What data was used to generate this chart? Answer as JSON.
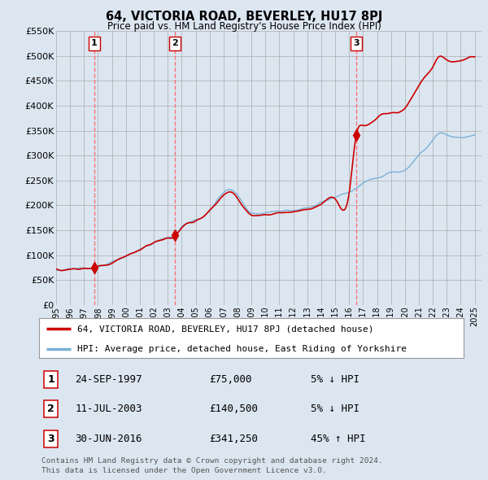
{
  "title": "64, VICTORIA ROAD, BEVERLEY, HU17 8PJ",
  "subtitle": "Price paid vs. HM Land Registry's House Price Index (HPI)",
  "transactions": [
    {
      "num": 1,
      "date": "24-SEP-1997",
      "year": 1997.73,
      "price": 75000,
      "pct": "5%",
      "dir": "↓"
    },
    {
      "num": 2,
      "date": "11-JUL-2003",
      "year": 2003.53,
      "price": 140500,
      "pct": "5%",
      "dir": "↓"
    },
    {
      "num": 3,
      "date": "30-JUN-2016",
      "year": 2016.5,
      "price": 341250,
      "pct": "45%",
      "dir": "↑"
    }
  ],
  "legend_line1": "64, VICTORIA ROAD, BEVERLEY, HU17 8PJ (detached house)",
  "legend_line2": "HPI: Average price, detached house, East Riding of Yorkshire",
  "footer1": "Contains HM Land Registry data © Crown copyright and database right 2024.",
  "footer2": "This data is licensed under the Open Government Licence v3.0.",
  "price_line_color": "#cc0000",
  "hpi_line_color": "#7ab0d4",
  "background_color": "#dce6f1",
  "plot_bg_color": "#dce6f1",
  "grid_color": "#aaaaaa",
  "dashed_color": "#ff6666",
  "ylim": [
    0,
    550000
  ],
  "yticks": [
    0,
    50000,
    100000,
    150000,
    200000,
    250000,
    300000,
    350000,
    400000,
    450000,
    500000,
    550000
  ],
  "xmin": 1995,
  "xmax": 2025.5
}
